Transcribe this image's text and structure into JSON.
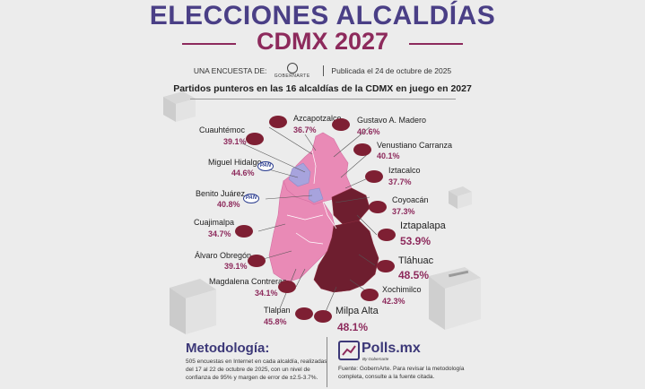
{
  "header": {
    "title_line1": "ELECCIONES ALCALDÍAS",
    "title_line2": "CDMX 2027",
    "byline_prefix": "UNA ENCUESTA DE:",
    "logo_text": "GOBERNARTE",
    "published": "Publicada el 24 de octubre de 2025"
  },
  "subtitle": "Partidos punteros en las 16 alcaldías de la CDMX en juego en 2027",
  "colors": {
    "morena_dark": "#6e1e2f",
    "morena_pink": "#e98ab6",
    "pan_blue": "#a7a3dd",
    "title_purple": "#4a3f86",
    "title_maroon": "#8d2a5c"
  },
  "alcaldias": [
    {
      "name": "Azcapotzalco",
      "pct": "36.7%",
      "party": "morena"
    },
    {
      "name": "Gustavo A. Madero",
      "pct": "40.6%",
      "party": "morena"
    },
    {
      "name": "Cuauhtémoc",
      "pct": "39.1%",
      "party": "morena"
    },
    {
      "name": "Venustiano Carranza",
      "pct": "40.1%",
      "party": "morena"
    },
    {
      "name": "Miguel Hidalgo",
      "pct": "44.6%",
      "party": "pan"
    },
    {
      "name": "Iztacalco",
      "pct": "37.7%",
      "party": "morena"
    },
    {
      "name": "Benito Juárez",
      "pct": "40.8%",
      "party": "pan"
    },
    {
      "name": "Coyoacán",
      "pct": "37.3%",
      "party": "morena"
    },
    {
      "name": "Iztapalapa",
      "pct": "53.9%",
      "party": "morena"
    },
    {
      "name": "Cuajimalpa",
      "pct": "34.7%",
      "party": "morena"
    },
    {
      "name": "Tláhuac",
      "pct": "48.5%",
      "party": "morena"
    },
    {
      "name": "Álvaro Obregón",
      "pct": "39.1%",
      "party": "morena"
    },
    {
      "name": "Xochimilco",
      "pct": "42.3%",
      "party": "morena"
    },
    {
      "name": "Magdalena Contreras",
      "pct": "34.1%",
      "party": "morena"
    },
    {
      "name": "Tlalpan",
      "pct": "45.8%",
      "party": "morena"
    },
    {
      "name": "Milpa Alta",
      "pct": "48.1%",
      "party": "morena"
    }
  ],
  "pan_logo_text": "PAN",
  "methodology": {
    "title": "Metodología:",
    "text": "505 encuestas en Internet en cada alcaldía, realizadas del 17 al 22 de octubre de 2025, con un nivel de confianza de 95% y margen de error de ±2.5-3.7%."
  },
  "brand": {
    "name": "Polls.mx",
    "sub": "By Gobernarte"
  },
  "source": "Fuente: GobernArte. Para revisar la metodología completa, consulte a la fuente citada."
}
